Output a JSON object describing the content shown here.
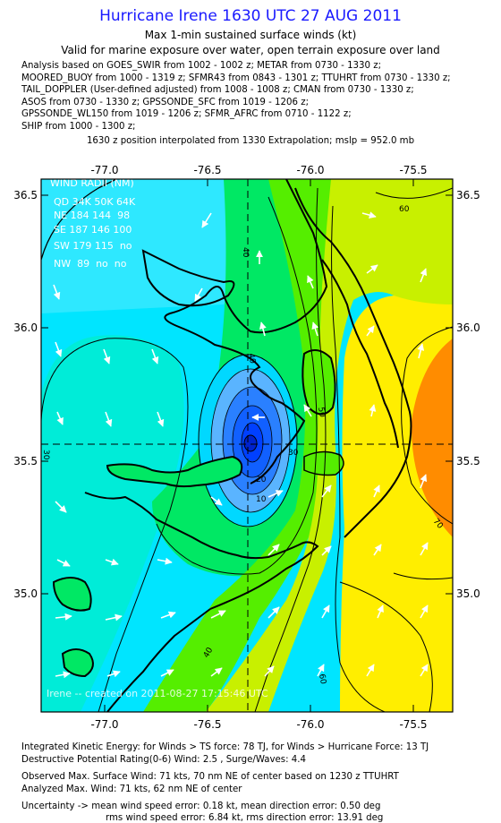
{
  "header": {
    "title": "Hurricane Irene 1630 UTC 27 AUG 2011",
    "subtitle1": "Max 1-min sustained surface winds (kt)",
    "subtitle2": "Valid for marine exposure over water, open terrain exposure over land",
    "analysis_lines": [
      "Analysis based on GOES_SWIR from 1002 - 1002 z; METAR from 0730 - 1330 z;",
      "MOORED_BUOY from 1000 - 1319 z; SFMR43 from 0843 - 1301 z; TTUHRT from 0730 - 1330 z;",
      "TAIL_DOPPLER (User-defined adjusted) from 1008 - 1008 z; CMAN from 0730 - 1330 z;",
      "ASOS from 0730 - 1330 z; GPSSONDE_SFC from 1019 - 1206 z;",
      "GPSSONDE_WL150 from 1019 - 1206 z; SFMR_AFRC from 0710 - 1122 z;",
      "SHIP from 1000 - 1300 z;"
    ],
    "interpolation": "1630 z position interpolated from 1330 Extrapolation; mslp = 952.0 mb"
  },
  "map": {
    "lon_ticks": [
      "-77.0",
      "-76.5",
      "-76.0",
      "-75.5"
    ],
    "lat_ticks": [
      "36.5",
      "36.0",
      "35.5",
      "35.0"
    ],
    "contour_labels": [
      "60",
      "40",
      "40",
      "50",
      "30",
      "20",
      "10",
      "70",
      "60",
      "40",
      "30"
    ],
    "wind_radii": {
      "title": "WIND RADII (NM)",
      "header": "QD 34K 50K 64K",
      "rows": [
        "NE 184 144  98",
        "SE 187 146 100",
        "SW 179 115  no",
        "NW  89  no  no"
      ]
    },
    "credit": "Irene -- created on 2011-08-27 17:15:46 UTC",
    "colors": {
      "cyan": "#00e5ff",
      "light_cyan": "#3cf0ff",
      "blue_light": "#5ab4ff",
      "blue_mid": "#2a80ff",
      "blue_dark": "#0040ff",
      "green_bright": "#00e864",
      "green": "#55ee00",
      "yellow_green": "#c8f000",
      "yellow": "#ffee00",
      "orange": "#ff8c00"
    }
  },
  "footer": {
    "ike": "Integrated Kinetic Energy:  for Winds > TS force: 78 TJ,  for Winds > Hurricane Force: 13 TJ",
    "dpr": "Destructive Potential Rating(0-6)   Wind: 2.5 , Surge/Waves: 4.4",
    "observed": "Observed Max. Surface Wind: 71 kts, 70 nm NE of center based on 1230 z TTUHRT",
    "analyzed": "Analyzed Max. Wind: 71 kts, 62 nm NE of center",
    "uncertainty": "Uncertainty -> mean wind speed error: 0.18 kt,   mean direction error: 0.50 deg",
    "rms": "rms wind speed error: 6.84 kt,   rms direction error: 13.91 deg"
  }
}
